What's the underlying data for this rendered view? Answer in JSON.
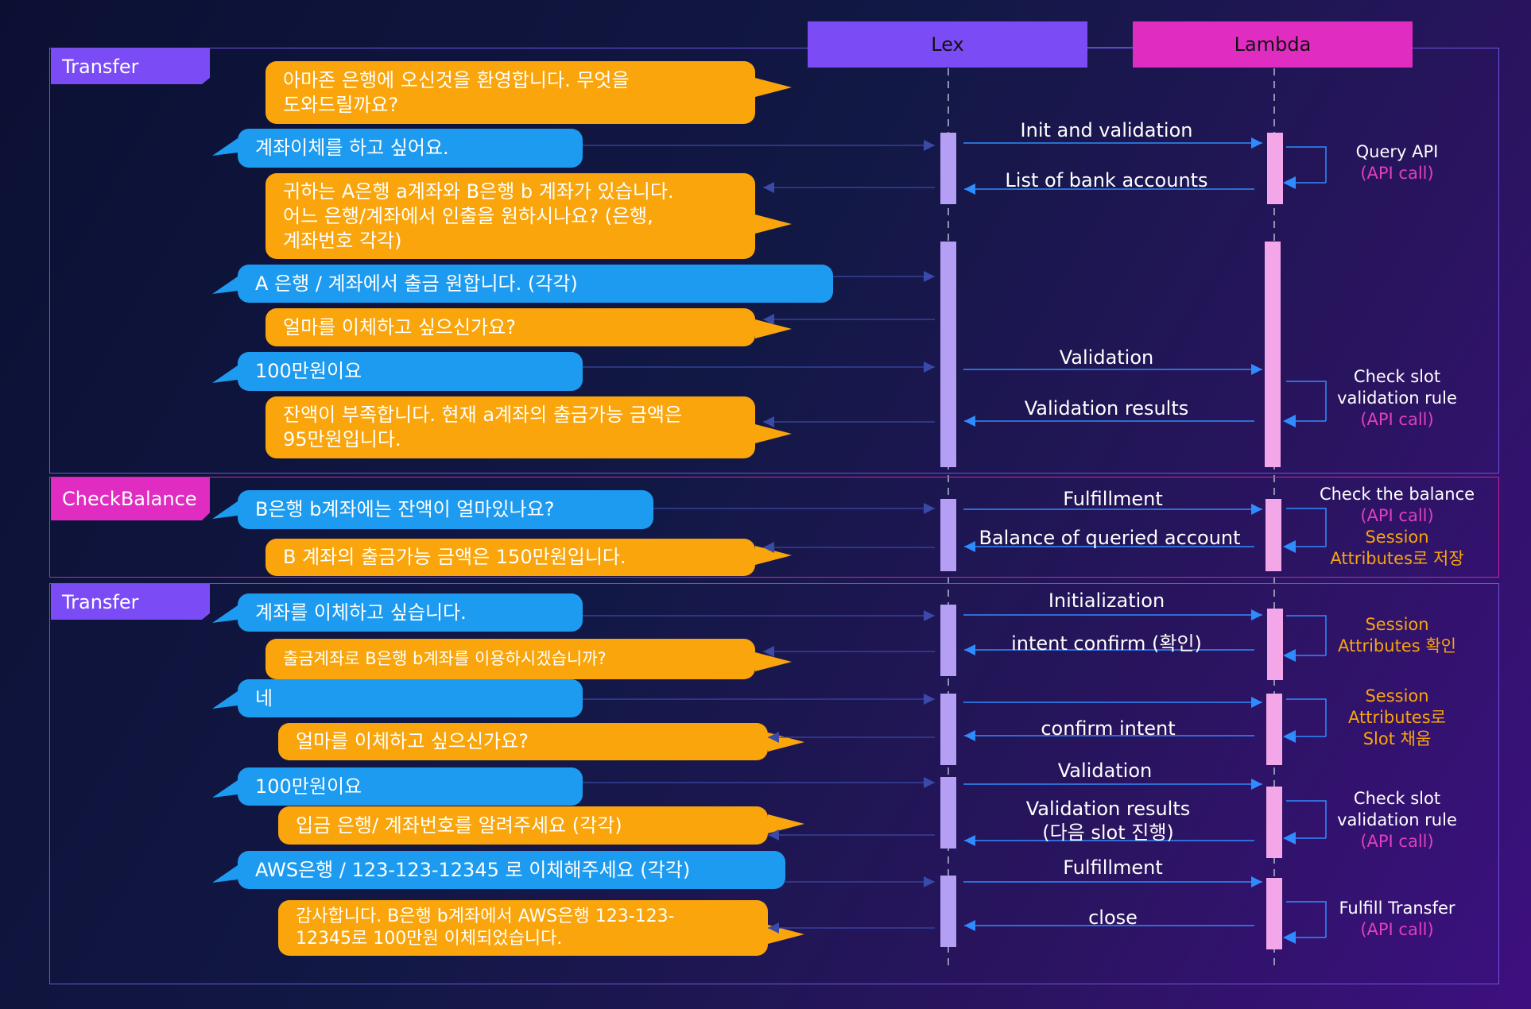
{
  "participants": {
    "lex": "Lex",
    "lambda": "Lambda"
  },
  "frames": [
    {
      "label": "Transfer"
    },
    {
      "label": "CheckBalance"
    },
    {
      "label": "Transfer"
    }
  ],
  "bubbles": [
    {
      "text": "아마존 은행에 오신것을 환영합니다. 무엇을\n도와드릴까요?"
    },
    {
      "text": "계좌이체를 하고 싶어요."
    },
    {
      "text": "귀하는 A은행 a계좌와 B은행 b 계좌가 있습니다.\n어느 은행/계좌에서 인출을 원하시나요? (은행,\n계좌번호 각각)"
    },
    {
      "text": "A 은행 / 계좌에서 출금 원합니다. (각각)"
    },
    {
      "text": "얼마를 이체하고 싶으신가요?"
    },
    {
      "text": "100만원이요"
    },
    {
      "text": "잔액이 부족합니다. 현재 a계좌의 출금가능 금액은\n95만원입니다."
    },
    {
      "text": "B은행 b계좌에는 잔액이 얼마있나요?"
    },
    {
      "text": "B 계좌의 출금가능 금액은 150만원입니다."
    },
    {
      "text": "계좌를 이체하고 싶습니다."
    },
    {
      "text": "출금계좌로 B은행 b계좌를 이용하시겠습니까?"
    },
    {
      "text": "네"
    },
    {
      "text": "얼마를 이체하고 싶으신가요?"
    },
    {
      "text": "100만원이요"
    },
    {
      "text": "입금 은행/ 계좌번호를 알려주세요 (각각)"
    },
    {
      "text": "AWS은행 / 123-123-12345 로 이체해주세요 (각각)"
    },
    {
      "text": "감사합니다. B은행 b계좌에서 AWS은행 123-123-\n12345로 100만원 이체되었습니다."
    }
  ],
  "messages": [
    {
      "text": "Init and validation"
    },
    {
      "text": "List of bank accounts"
    },
    {
      "text": "Validation"
    },
    {
      "text": "Validation results"
    },
    {
      "text": "Fulfillment"
    },
    {
      "text": "Balance of queried account"
    },
    {
      "text": "Initialization"
    },
    {
      "text": "intent confirm (확인)"
    },
    {
      "text": "confirm intent"
    },
    {
      "text": "Validation"
    },
    {
      "text": "Validation results\n(다음 slot 진행)"
    },
    {
      "text": "Fulfillment"
    },
    {
      "text": "close"
    }
  ],
  "notes": [
    {
      "l1": "Query API",
      "l2": "(API call)"
    },
    {
      "l1": "Check slot",
      "l2": "validation rule",
      "l3": "(API call)"
    },
    {
      "l1": "Check the balance",
      "l2": "(API call)",
      "l3": "Session",
      "l4": "Attributes로 저장"
    },
    {
      "l1": "Session",
      "l2": "Attributes 확인"
    },
    {
      "l1": "Session",
      "l2": "Attributes로",
      "l3": "Slot 채움"
    },
    {
      "l1": "Check slot",
      "l2": "validation rule",
      "l3": "(API call)"
    },
    {
      "l1": "Fulfill Transfer",
      "l2": "(API call)"
    }
  ],
  "colors": {
    "user_bubble": "#1d9bf0",
    "bot_bubble": "#f9a50b",
    "lex_header": "#7b4cf5",
    "lambda_header": "#e02cc0",
    "transfer_frame": "#7b4cf5",
    "checkbalance_frame": "#e02cc0",
    "arrow": "#2f8cff"
  }
}
